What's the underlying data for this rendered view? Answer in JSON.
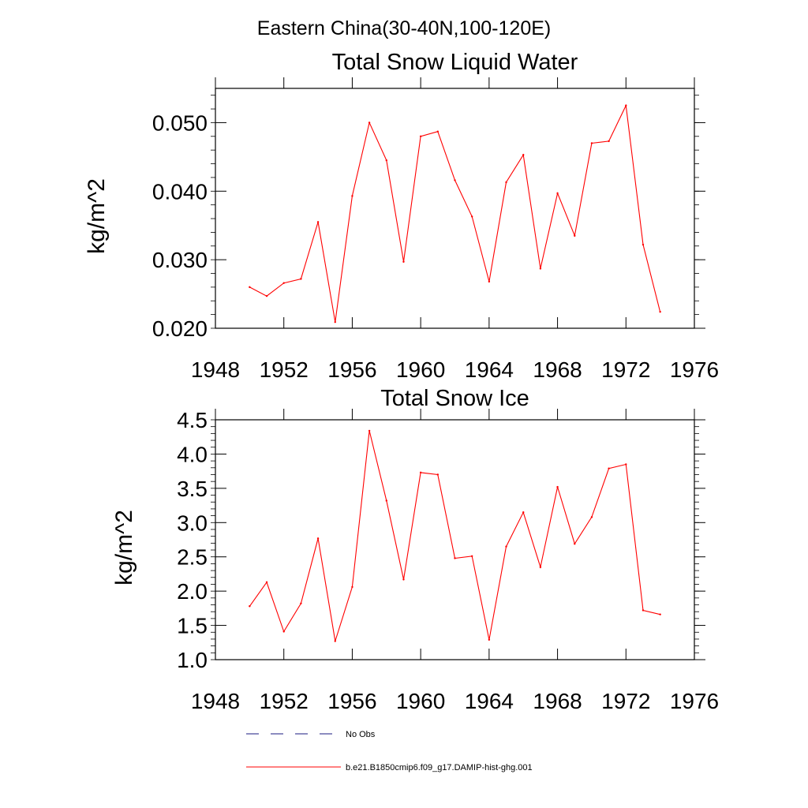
{
  "figure": {
    "suptitle": "Eastern China(30-40N,100-120E)"
  },
  "colors": {
    "series": "#ff0000",
    "no_obs": "#1a1a80",
    "axes": "#000000"
  },
  "legend": {
    "placement": "bottom",
    "entries": [
      {
        "label": "No Obs",
        "style": "dashed",
        "color": "#1a1a80"
      },
      {
        "label": "b.e21.B1850cmip6.f09_g17.DAMIP-hist-ghg.001",
        "style": "solid",
        "color": "#ff0000"
      }
    ]
  },
  "chart_data": [
    {
      "type": "line",
      "title": "Total Snow Liquid Water",
      "xlabel": "",
      "ylabel": "kg/m^2",
      "xlim": [
        1948,
        1976
      ],
      "ylim": [
        0.02,
        0.055
      ],
      "xticks": [
        1948,
        1952,
        1956,
        1960,
        1964,
        1968,
        1972,
        1976
      ],
      "xtick_labels": [
        "1948",
        "1952",
        "1956",
        "1960",
        "1964",
        "1968",
        "1972",
        "1976"
      ],
      "yticks": [
        0.02,
        0.03,
        0.04,
        0.05
      ],
      "ytick_labels": [
        "0.020",
        "0.030",
        "0.040",
        "0.050"
      ],
      "grid": false,
      "x": [
        1950,
        1951,
        1952,
        1953,
        1954,
        1955,
        1956,
        1957,
        1958,
        1959,
        1960,
        1961,
        1962,
        1963,
        1964,
        1965,
        1966,
        1967,
        1968,
        1969,
        1970,
        1971,
        1972,
        1973,
        1974
      ],
      "series": [
        {
          "name": "b.e21.B1850cmip6.f09_g17.DAMIP-hist-ghg.001",
          "values": [
            0.026,
            0.0247,
            0.0266,
            0.0272,
            0.0355,
            0.0209,
            0.0393,
            0.05,
            0.0445,
            0.0297,
            0.048,
            0.0487,
            0.0416,
            0.0363,
            0.0268,
            0.0413,
            0.0453,
            0.0287,
            0.0397,
            0.0335,
            0.047,
            0.0473,
            0.0525,
            0.0322,
            0.0224
          ]
        }
      ]
    },
    {
      "type": "line",
      "title": "Total Snow Ice",
      "xlabel": "",
      "ylabel": "kg/m^2",
      "xlim": [
        1948,
        1976
      ],
      "ylim": [
        1.0,
        4.5
      ],
      "xticks": [
        1948,
        1952,
        1956,
        1960,
        1964,
        1968,
        1972,
        1976
      ],
      "xtick_labels": [
        "1948",
        "1952",
        "1956",
        "1960",
        "1964",
        "1968",
        "1972",
        "1976"
      ],
      "yticks": [
        1.0,
        1.5,
        2.0,
        2.5,
        3.0,
        3.5,
        4.0,
        4.5
      ],
      "ytick_labels": [
        "1.0",
        "1.5",
        "2.0",
        "2.5",
        "3.0",
        "3.5",
        "4.0",
        "4.5"
      ],
      "grid": false,
      "x": [
        1950,
        1951,
        1952,
        1953,
        1954,
        1955,
        1956,
        1957,
        1958,
        1959,
        1960,
        1961,
        1962,
        1963,
        1964,
        1965,
        1966,
        1967,
        1968,
        1969,
        1970,
        1971,
        1972,
        1973,
        1974
      ],
      "series": [
        {
          "name": "b.e21.B1850cmip6.f09_g17.DAMIP-hist-ghg.001",
          "values": [
            1.78,
            2.13,
            1.41,
            1.82,
            2.77,
            1.27,
            2.06,
            4.34,
            3.32,
            2.17,
            3.73,
            3.7,
            2.48,
            2.51,
            1.29,
            2.65,
            3.15,
            2.35,
            3.52,
            2.69,
            3.08,
            3.79,
            3.85,
            1.72,
            1.66
          ]
        }
      ]
    }
  ]
}
